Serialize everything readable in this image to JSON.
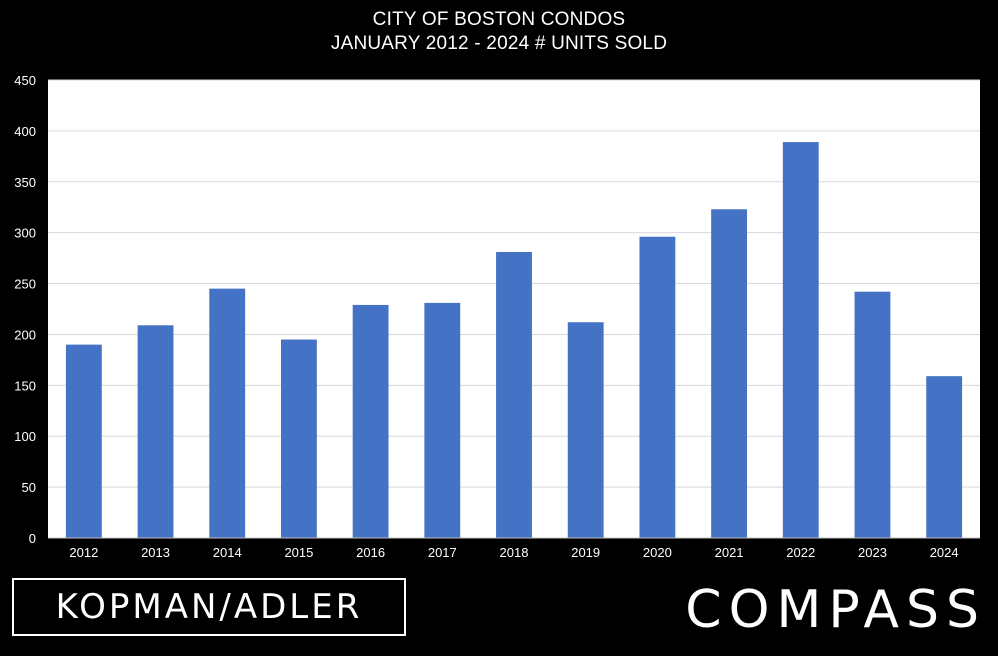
{
  "chart_data": {
    "type": "bar",
    "title": "CITY OF BOSTON CONDOS",
    "subtitle": "JANUARY 2012 - 2024 # UNITS SOLD",
    "xlabel": "",
    "ylabel": "",
    "categories": [
      "2012",
      "2013",
      "2014",
      "2015",
      "2016",
      "2017",
      "2018",
      "2019",
      "2020",
      "2021",
      "2022",
      "2023",
      "2024"
    ],
    "values": [
      190,
      209,
      245,
      195,
      229,
      231,
      281,
      212,
      296,
      323,
      389,
      242,
      159
    ],
    "ylim": [
      0,
      450
    ],
    "yticks": [
      0,
      50,
      100,
      150,
      200,
      250,
      300,
      350,
      400,
      450
    ],
    "grid": true,
    "bar_color": "#4472C4",
    "plot_background": "#ffffff",
    "page_background": "#000000"
  },
  "branding": {
    "left_logo": "KOPMAN/ADLER",
    "right_logo": "COMPASS"
  }
}
